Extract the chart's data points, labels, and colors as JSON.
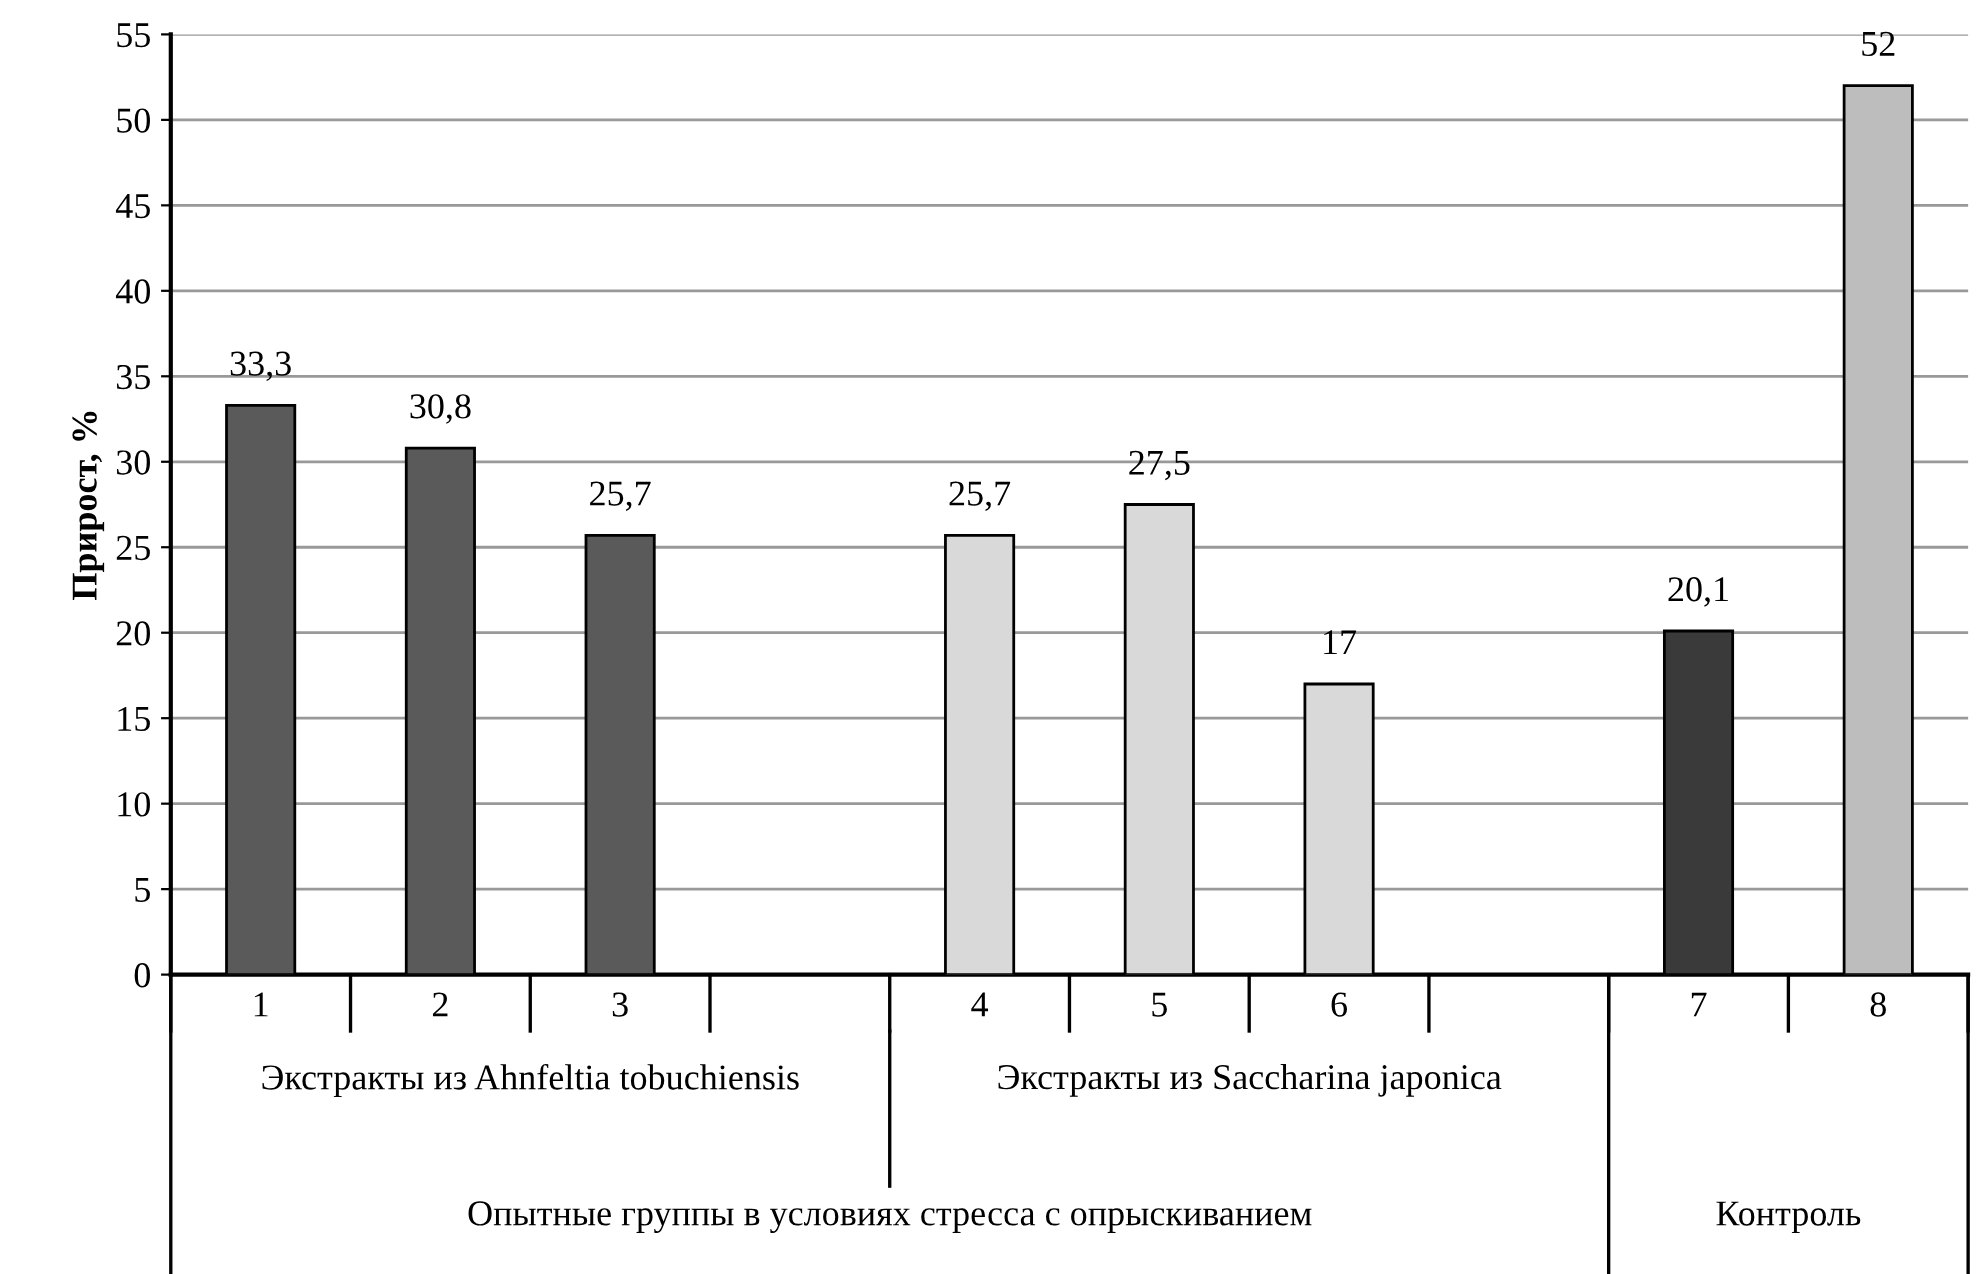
{
  "chart_data": {
    "type": "bar",
    "ylabel": "Прирост, %",
    "categories": [
      "1",
      "2",
      "3",
      null,
      "4",
      "5",
      "6",
      null,
      "7",
      "8"
    ],
    "values": [
      33.3,
      30.8,
      25.7,
      null,
      25.7,
      27.5,
      17,
      null,
      20.1,
      52
    ],
    "colors": [
      "#5a5a5a",
      "#5a5a5a",
      "#5a5a5a",
      "#cccccc",
      "#d9d9d9",
      "#d9d9d9",
      "#d9d9d9",
      "#cccccc",
      "#3a3a3a",
      "#bdbdbd"
    ],
    "value_labels": [
      "33,3",
      "30,8",
      "25,7",
      null,
      "25,7",
      "27,5",
      "17",
      null,
      "20,1",
      "52"
    ],
    "ylim": [
      0,
      55
    ],
    "yticks": [
      0,
      5,
      10,
      15,
      20,
      25,
      30,
      35,
      40,
      45,
      50,
      55
    ],
    "grid": "y",
    "annotations": [
      "Экстракты из Ahnfeltia tobuchiensis",
      "Экстракты из Saccharina japonica",
      "Опытные группы в условиях стресса с опрыскиванием",
      "Контроль"
    ]
  }
}
